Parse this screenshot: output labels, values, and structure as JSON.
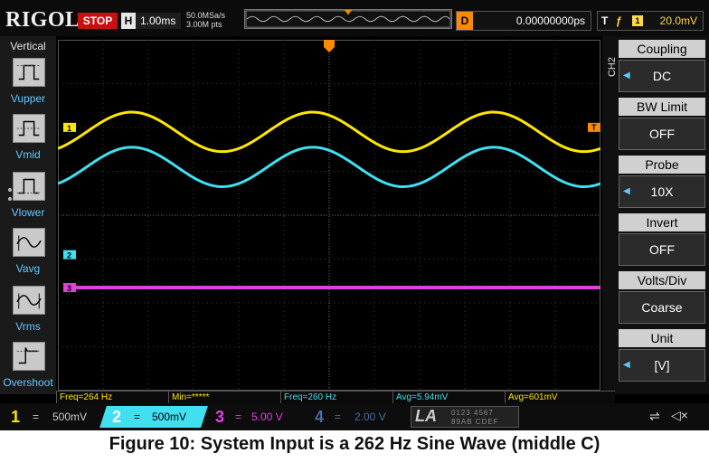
{
  "top": {
    "brand": "RIGOL",
    "run_state": "STOP",
    "horizontal_label": "H",
    "timebase": "1.00ms",
    "sample_rate": "50.0MSa/s",
    "memory_depth": "3.00M pts",
    "delay_label": "D",
    "delay_value": "0.00000000ps",
    "trigger_label": "T",
    "trigger_source": "1",
    "trigger_level": "20.0mV"
  },
  "left_panel": {
    "title": "Vertical",
    "items": [
      {
        "label": "Vupper",
        "icon": "vupper-icon"
      },
      {
        "label": "Vmid",
        "icon": "vmid-icon"
      },
      {
        "label": "Vlower",
        "icon": "vlower-icon"
      },
      {
        "label": "Vavg",
        "icon": "vavg-icon"
      },
      {
        "label": "Vrms",
        "icon": "vrms-icon"
      },
      {
        "label": "Overshoot",
        "icon": "overshoot-icon"
      }
    ]
  },
  "right_menu": {
    "channel_tag": "CH2",
    "items": [
      {
        "title": "Coupling",
        "value": "DC",
        "has_arrow": true
      },
      {
        "title": "BW Limit",
        "value": "OFF",
        "has_arrow": false
      },
      {
        "title": "Probe",
        "value": "10X",
        "has_arrow": true
      },
      {
        "title": "Invert",
        "value": "OFF",
        "has_arrow": false
      },
      {
        "title": "Volts/Div",
        "value": "Coarse",
        "has_arrow": false
      },
      {
        "title": "Unit",
        "value": "[V]",
        "has_arrow": true
      }
    ]
  },
  "measurements": [
    {
      "text": "Freq=264 Hz",
      "color": "#ffe600"
    },
    {
      "text": "Min=*****",
      "color": "#ffe600"
    },
    {
      "text": "Freq=260 Hz",
      "color": "#40e0f0"
    },
    {
      "text": "Avg=5.94mV",
      "color": "#40e0f0"
    },
    {
      "text": "Avg=601mV",
      "color": "#ffe600"
    }
  ],
  "channels": [
    {
      "num": "1",
      "coupling": "=",
      "scale": "500mV",
      "color": "#ffe600",
      "active": false
    },
    {
      "num": "2",
      "coupling": "=",
      "scale": "500mV",
      "color": "#40e0f0",
      "active": true
    },
    {
      "num": "3",
      "coupling": "=",
      "scale": "5.00 V",
      "color": "#e040e0",
      "active": false
    },
    {
      "num": "4",
      "coupling": "=",
      "scale": "2.00 V",
      "color": "#4a6aa8",
      "active": false
    }
  ],
  "la": {
    "label": "LA",
    "digits_top": "0123 4567",
    "digits_bottom": "89AB CDEF"
  },
  "markers": {
    "ch1": "1",
    "ch2": "2",
    "ch3": "3",
    "trig": "T"
  },
  "waveforms": {
    "ch1": {
      "color": "#ffe600",
      "type": "sine",
      "cycles": 3,
      "amplitude_div": 0.45
    },
    "ch2": {
      "color": "#40e0f0",
      "type": "sine",
      "cycles": 3,
      "amplitude_div": 0.45
    },
    "ch3": {
      "color": "#e040e0",
      "type": "flat"
    }
  },
  "caption": "Figure 10: System Input is a 262 Hz Sine Wave (middle C)"
}
